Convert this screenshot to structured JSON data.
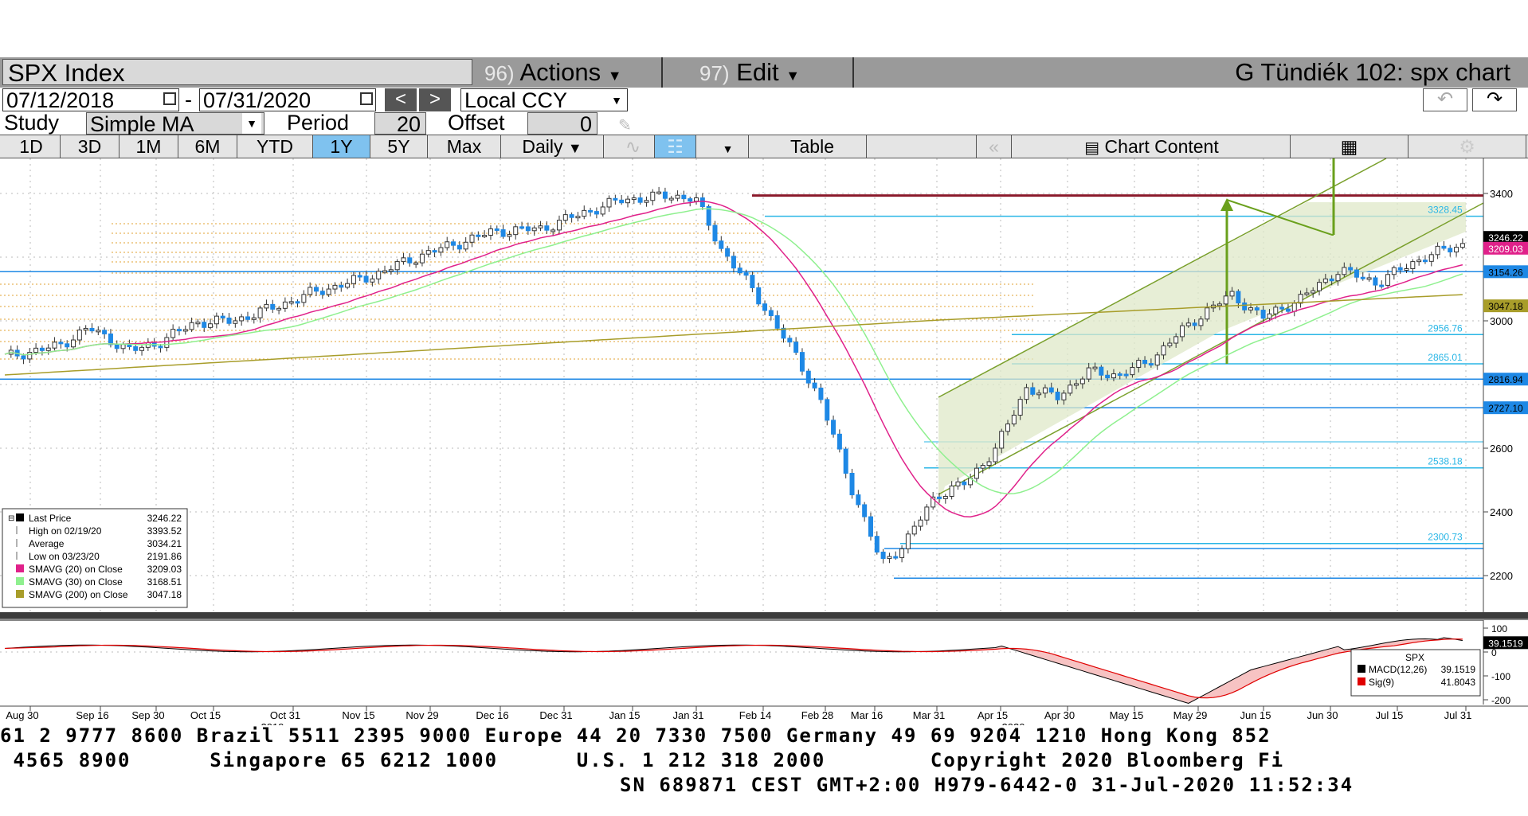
{
  "header": {
    "security": "SPX Index",
    "actions": {
      "num": "96)",
      "label": "Actions"
    },
    "edit": {
      "num": "97)",
      "label": "Edit"
    },
    "chart_name": "G Tündiék 102: spx chart"
  },
  "range": {
    "start": "07/12/2018",
    "dash": "-",
    "end": "07/31/2020",
    "prev": "<",
    "next": ">",
    "currency": "Local CCY"
  },
  "study": {
    "label": "Study",
    "type": "Simple MA",
    "period_label": "Period",
    "period": "20",
    "offset_label": "Offset",
    "offset": "0"
  },
  "tabs": {
    "items": [
      "1D",
      "3D",
      "1M",
      "6M",
      "YTD",
      "1Y",
      "5Y",
      "Max"
    ],
    "active": "1Y",
    "frequency": "Daily",
    "table": "Table",
    "chart_content": "Chart Content"
  },
  "price_axis": {
    "ticks": [
      "3400",
      "3000",
      "2600",
      "2400",
      "2200"
    ],
    "line_labels": [
      "3328.45",
      "2956.76",
      "2865.01",
      "2538.18",
      "2300.73"
    ],
    "boxed_labels": [
      {
        "text": "3246.22",
        "bg": "#000000",
        "fg": "#ffffff"
      },
      {
        "text": "3209.03",
        "bg": "#e0218a",
        "fg": "#ffffff"
      },
      {
        "text": "3154.26",
        "bg": "#1e88e5",
        "fg": "#000000"
      },
      {
        "text": "3047.18",
        "bg": "#a89d2a",
        "fg": "#000000"
      },
      {
        "text": "2816.94",
        "bg": "#1e88e5",
        "fg": "#000000"
      },
      {
        "text": "2727.10",
        "bg": "#1e88e5",
        "fg": "#000000"
      }
    ]
  },
  "legend": {
    "rows": [
      {
        "label": "Last Price",
        "value": "3246.22",
        "swatch": "#000000"
      },
      {
        "label": "High on 02/19/20",
        "value": "3393.52",
        "swatch": ""
      },
      {
        "label": "Average",
        "value": "3034.21",
        "swatch": ""
      },
      {
        "label": "Low on 03/23/20",
        "value": "2191.86",
        "swatch": ""
      },
      {
        "label": "SMAVG (20)  on Close",
        "value": "3209.03",
        "swatch": "#e0218a"
      },
      {
        "label": "SMAVG (30)  on Close",
        "value": "3168.51",
        "swatch": "#8ff08f"
      },
      {
        "label": "SMAVG (200)  on Close",
        "value": "3047.18",
        "swatch": "#a89d2a"
      }
    ]
  },
  "macd": {
    "ticks": [
      "100",
      "0",
      "-100",
      "-200"
    ],
    "boxed_value": "39.1519",
    "legend_title": "SPX",
    "rows": [
      {
        "label": "MACD(12,26)",
        "value": "39.1519",
        "swatch": "#000000"
      },
      {
        "label": "Sig(9)",
        "value": "41.8043",
        "swatch": "#e00000"
      }
    ]
  },
  "date_axis": {
    "labels": [
      "Aug 30",
      "Sep 16",
      "Sep 30",
      "Oct 15",
      "Oct 31",
      "Nov 15",
      "Nov 29",
      "Dec 16",
      "Dec 31",
      "Jan 15",
      "Jan 31",
      "Feb 14",
      "Feb 28",
      "Mar 16",
      "Mar 31",
      "Apr 15",
      "Apr 30",
      "May 15",
      "May 29",
      "Jun 15",
      "Jun 30",
      "Jul 15",
      "Jul 31"
    ],
    "years": [
      "2019",
      "2020"
    ]
  },
  "footer": {
    "line1": "61 2 9777 8600 Brazil 5511 2395 9000 Europe 44 20 7330 7500 Germany 49 69 9204 1210 Hong Kong 852",
    "line2": " 4565 8900      Singapore 65 6212 1000      U.S. 1 212 318 2000        Copyright 2020 Bloomberg Fi",
    "line3": "SN 689871 CEST GMT+2:00 H979-6442-0 31-Jul-2020 11:52:34"
  }
}
